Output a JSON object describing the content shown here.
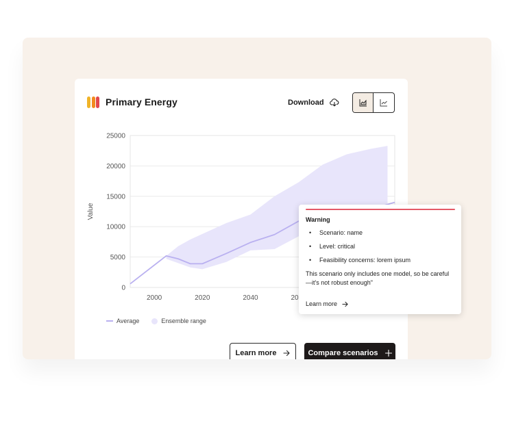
{
  "header": {
    "title": "Primary Energy",
    "download_label": "Download",
    "logo_colors": [
      "#f0b429",
      "#f28a1f",
      "#e2474d"
    ]
  },
  "view_toggle": {
    "options": [
      {
        "icon": "area-chart-icon",
        "active": true
      },
      {
        "icon": "line-chart-icon",
        "active": false
      }
    ]
  },
  "chart_data": {
    "type": "area",
    "ylabel": "Value",
    "xlabel": "",
    "title": "",
    "xlim": [
      1990,
      2100
    ],
    "ylim": [
      0,
      25000
    ],
    "x_ticks": [
      "2000",
      "2020",
      "2040",
      "2060"
    ],
    "y_ticks": [
      "0",
      "5000",
      "10000",
      "15000",
      "20000",
      "25000"
    ],
    "grid": true,
    "series": [
      {
        "name": "Average",
        "type": "line",
        "color": "#b9b0f0",
        "x": [
          1990,
          2005,
          2010,
          2015,
          2020,
          2030,
          2040,
          2050,
          2060,
          2070,
          2080,
          2090,
          2100
        ],
        "y": [
          600,
          5200,
          4700,
          3900,
          3900,
          5600,
          7400,
          8700,
          10900,
          11500,
          12300,
          12900,
          14000
        ]
      },
      {
        "name": "Ensemble range",
        "type": "band",
        "color": "#e8e5fb",
        "x": [
          2005,
          2010,
          2015,
          2020,
          2030,
          2040,
          2050,
          2060,
          2070,
          2080,
          2090,
          2097
        ],
        "upper": [
          5200,
          6800,
          7900,
          8800,
          10600,
          12000,
          15000,
          17300,
          20200,
          21900,
          22800,
          23300
        ],
        "lower": [
          4700,
          4000,
          3300,
          3000,
          4200,
          6100,
          6300,
          8400,
          9300,
          10400,
          11500,
          12100
        ]
      }
    ],
    "legend": [
      "Average",
      "Ensemble range"
    ],
    "legend_position": "bottom-left"
  },
  "buttons": {
    "learn_more": "Learn more",
    "compare": "Compare scenarios"
  },
  "tooltip": {
    "title": "Warning",
    "accent_color": "#e45866",
    "items": [
      "Scenario:  name",
      "Level:  critical",
      "Feasibility concerns: lorem ipsum"
    ],
    "body": "This scenario only includes one model, so be careful —it's not robust enough\"",
    "link": "Learn more"
  }
}
